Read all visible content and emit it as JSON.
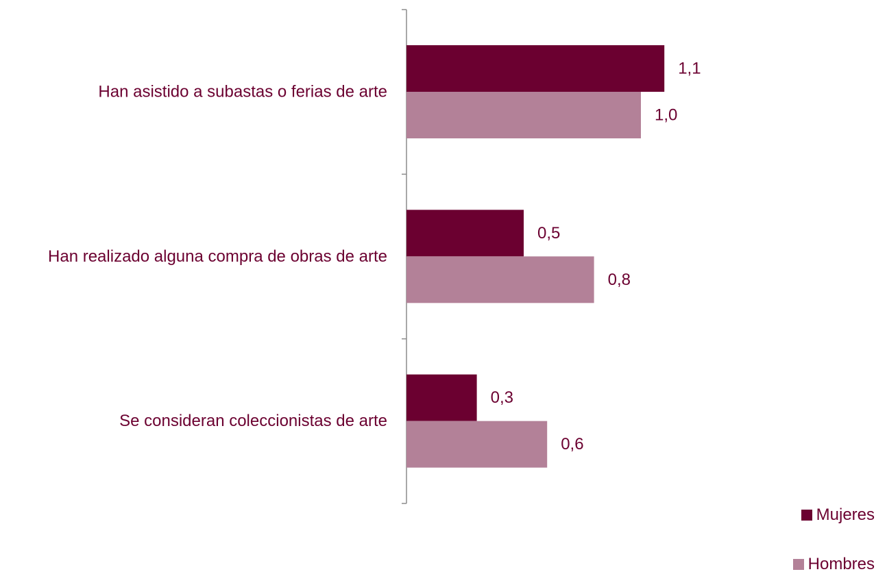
{
  "chart_data": {
    "type": "bar",
    "orientation": "horizontal",
    "categories": [
      "Han asistido a subastas o ferias de arte",
      "Han realizado alguna compra de obras de arte",
      "Se consideran coleccionistas de arte"
    ],
    "series": [
      {
        "name": "Mujeres",
        "values": [
          1.1,
          0.5,
          0.3
        ],
        "labels": [
          "1,1",
          "0,5",
          "0,3"
        ],
        "color": "#6b0030"
      },
      {
        "name": "Hombres",
        "values": [
          1.0,
          0.8,
          0.6
        ],
        "labels": [
          "1,0",
          "0,8",
          "0,6"
        ],
        "color": "#b38198"
      }
    ],
    "title": "",
    "xlabel": "",
    "ylabel": "",
    "xlim": [
      0,
      1.3
    ],
    "grid": false,
    "legend": "bottom-right",
    "label_color": "#6b0030",
    "axis_color": "#8c8c8c"
  }
}
